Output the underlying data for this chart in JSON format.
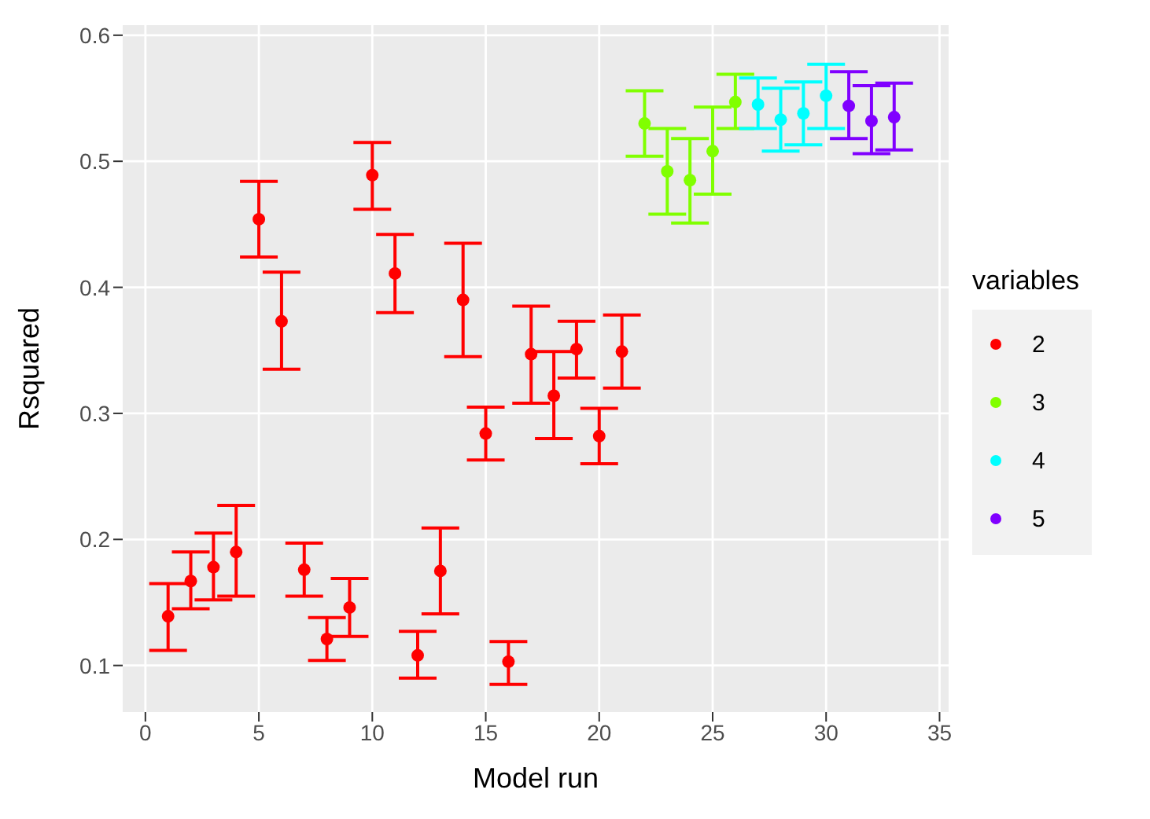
{
  "chart_data": {
    "type": "scatter",
    "xlabel": "Model run",
    "ylabel": "Rsquared",
    "legend_title": "variables",
    "xlim": [
      -1,
      35.4
    ],
    "xticks": [
      0,
      5,
      10,
      15,
      20,
      25,
      30,
      35
    ],
    "ylim": [
      0.063,
      0.608
    ],
    "yticks": [
      0.1,
      0.2,
      0.3,
      0.4,
      0.5,
      0.6
    ],
    "grid": true,
    "legend": "right",
    "marker": "circle",
    "series": [
      {
        "name": "2",
        "color": "#ff0000",
        "x": [
          1,
          2,
          3,
          4,
          5,
          6,
          7,
          8,
          9,
          10,
          11,
          12,
          13,
          14,
          15,
          16,
          17,
          18,
          19,
          20,
          21
        ],
        "values": [
          0.139,
          0.167,
          0.178,
          0.19,
          0.454,
          0.373,
          0.176,
          0.121,
          0.146,
          0.489,
          0.411,
          0.108,
          0.175,
          0.39,
          0.284,
          0.103,
          0.347,
          0.314,
          0.351,
          0.282,
          0.349
        ],
        "errors": [
          [
            0.112,
            0.165
          ],
          [
            0.145,
            0.19
          ],
          [
            0.152,
            0.205
          ],
          [
            0.155,
            0.227
          ],
          [
            0.424,
            0.484
          ],
          [
            0.335,
            0.412
          ],
          [
            0.155,
            0.197
          ],
          [
            0.104,
            0.138
          ],
          [
            0.123,
            0.169
          ],
          [
            0.462,
            0.515
          ],
          [
            0.38,
            0.442
          ],
          [
            0.09,
            0.127
          ],
          [
            0.141,
            0.209
          ],
          [
            0.345,
            0.435
          ],
          [
            0.263,
            0.305
          ],
          [
            0.085,
            0.119
          ],
          [
            0.308,
            0.385
          ],
          [
            0.28,
            0.349
          ],
          [
            0.328,
            0.373
          ],
          [
            0.26,
            0.304
          ],
          [
            0.32,
            0.378
          ]
        ]
      },
      {
        "name": "3",
        "color": "#80ff00",
        "x": [
          22,
          23,
          24,
          25,
          26
        ],
        "values": [
          0.53,
          0.492,
          0.485,
          0.508,
          0.547
        ],
        "errors": [
          [
            0.504,
            0.556
          ],
          [
            0.458,
            0.526
          ],
          [
            0.451,
            0.518
          ],
          [
            0.474,
            0.543
          ],
          [
            0.526,
            0.569
          ]
        ]
      },
      {
        "name": "4",
        "color": "#00ffff",
        "x": [
          27,
          28,
          29,
          30
        ],
        "values": [
          0.545,
          0.533,
          0.538,
          0.552
        ],
        "errors": [
          [
            0.526,
            0.566
          ],
          [
            0.508,
            0.558
          ],
          [
            0.513,
            0.563
          ],
          [
            0.526,
            0.577
          ]
        ]
      },
      {
        "name": "5",
        "color": "#8000ff",
        "x": [
          31,
          32,
          33
        ],
        "values": [
          0.544,
          0.532,
          0.535
        ],
        "errors": [
          [
            0.518,
            0.571
          ],
          [
            0.506,
            0.56
          ],
          [
            0.509,
            0.562
          ]
        ]
      }
    ]
  }
}
